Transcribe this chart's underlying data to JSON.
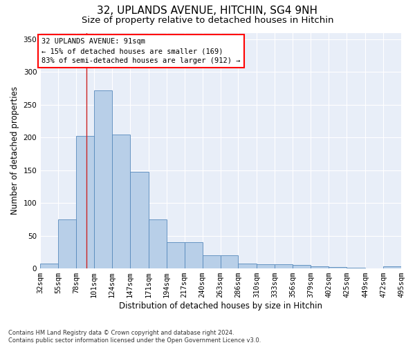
{
  "title_line1": "32, UPLANDS AVENUE, HITCHIN, SG4 9NH",
  "title_line2": "Size of property relative to detached houses in Hitchin",
  "xlabel": "Distribution of detached houses by size in Hitchin",
  "ylabel": "Number of detached properties",
  "bar_color": "#b8cfe8",
  "bar_edge_color": "#5588bb",
  "background_color": "#e8eef8",
  "grid_color": "#ffffff",
  "annotation_text": "32 UPLANDS AVENUE: 91sqm\n← 15% of detached houses are smaller (169)\n83% of semi-detached houses are larger (912) →",
  "property_line_x": 91,
  "bin_edges": [
    32,
    55,
    78,
    101,
    124,
    147,
    171,
    194,
    217,
    240,
    263,
    286,
    310,
    333,
    356,
    379,
    402,
    425,
    449,
    472,
    495
  ],
  "bin_values": [
    7,
    75,
    202,
    272,
    205,
    148,
    75,
    40,
    40,
    20,
    20,
    7,
    6,
    6,
    5,
    3,
    2,
    1,
    0,
    3
  ],
  "ylim": [
    0,
    360
  ],
  "yticks": [
    0,
    50,
    100,
    150,
    200,
    250,
    300,
    350
  ],
  "footnote": "Contains HM Land Registry data © Crown copyright and database right 2024.\nContains public sector information licensed under the Open Government Licence v3.0.",
  "title_fontsize": 11,
  "subtitle_fontsize": 9.5,
  "tick_label_fontsize": 7.5,
  "axis_label_fontsize": 8.5,
  "annotation_fontsize": 7.5,
  "footnote_fontsize": 6
}
